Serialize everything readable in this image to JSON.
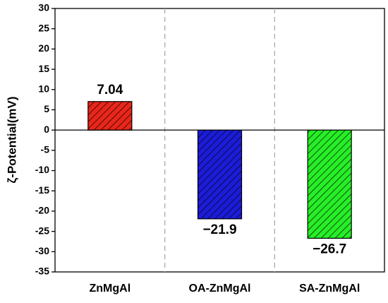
{
  "chart_data": {
    "type": "bar",
    "y_label": "ζ-Potential(mV)",
    "categories": [
      "ZnMgAl",
      "OA-ZnMgAl",
      "SA-ZnMgAl"
    ],
    "values": [
      7.04,
      -21.9,
      -26.7
    ],
    "value_labels": [
      "7.04",
      "−21.9",
      "−26.7"
    ],
    "colors": [
      "#e8261a",
      "#1c1cd8",
      "#27ee27"
    ],
    "hatch": true,
    "ylim": [
      -35,
      30
    ],
    "yticks": [
      -35,
      -30,
      -25,
      -20,
      -15,
      -10,
      -5,
      0,
      5,
      10,
      15,
      20,
      25,
      30
    ]
  }
}
